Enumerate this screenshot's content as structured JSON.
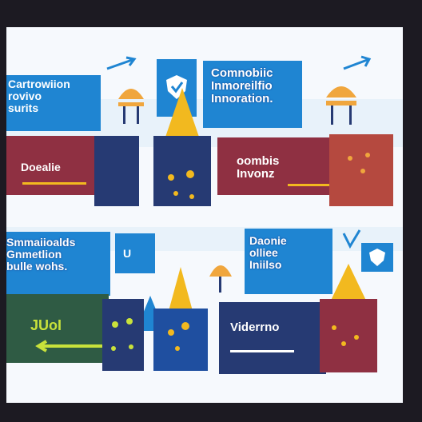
{
  "top_left_panel": {
    "text": "Cartrowiion\nrovivo\nsurits"
  },
  "top_center_panel": {
    "text": "Comnobiic\nInmoreilfio\nInnoration."
  },
  "middle_left_panel": {
    "text": "Doealie"
  },
  "middle_center_panel": {
    "text": "oombis\nInvonz"
  },
  "lower_left_panel": {
    "text": "Smmaiioalds\nGnmetlion\nbulle wohs."
  },
  "lower_small_panel": {
    "text": "U"
  },
  "lower_right_panel": {
    "text": "Daonie\nolliee\nIniilso"
  },
  "bottom_left_panel": {
    "text": "JUoI"
  },
  "bottom_center_panel": {
    "text": "Viderrno"
  },
  "colors": {
    "blue": "#1f85d2",
    "navy": "#263a73",
    "maroon": "#8f3042",
    "green": "#2f5b44",
    "yellow": "#f2b91f",
    "orange": "#f0a63d",
    "lime": "#c9e23b",
    "light_blue": "#d9ecf8"
  },
  "icons": [
    "lamp-icon",
    "shield-icon",
    "rocket-icon",
    "arrow-icon",
    "check-icon"
  ]
}
